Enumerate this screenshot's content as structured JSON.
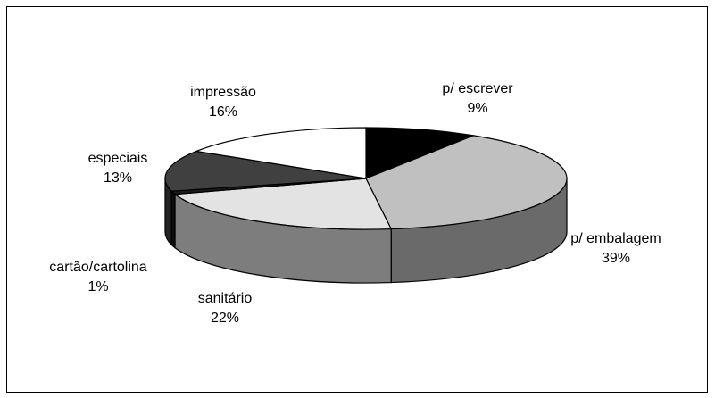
{
  "chart_data": {
    "type": "pie3d",
    "categories": [
      "p/ escrever",
      "p/ embalagem",
      "sanitário",
      "cartão/cartolina",
      "especiais",
      "impressão"
    ],
    "values": [
      9,
      39,
      22,
      1,
      13,
      16
    ],
    "value_labels": [
      "9%",
      "39%",
      "22%",
      "1%",
      "13%",
      "16%"
    ],
    "colors": [
      "#000000",
      "#c0c0c0",
      "#e3e3e3",
      "#1a1a1a",
      "#404040",
      "#ffffff"
    ]
  }
}
